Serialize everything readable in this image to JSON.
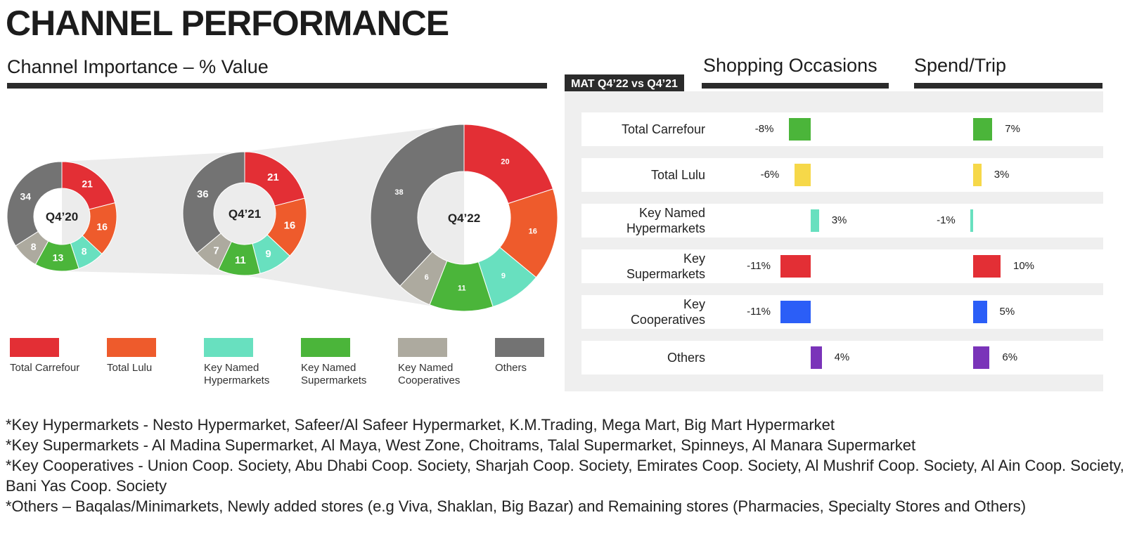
{
  "page": {
    "title": "CHANNEL PERFORMANCE",
    "channel_importance_title": "Channel Importance – % Value",
    "period_badge": "MAT Q4’22 vs Q4’21",
    "shopping_occasions_title": "Shopping Occasions",
    "spend_trip_title": "Spend/Trip"
  },
  "colors": {
    "Total Carrefour": "#e32f35",
    "Total Lulu": "#ee5b2c",
    "Key Named Hypermarkets": "#68e0bf",
    "Key Named Supermarkets": "#4bb53a",
    "Key Named Cooperatives": "#adaa9f",
    "Others": "#737373",
    "Key Supermarkets": "#e32f35",
    "Key Cooperatives": "#2b5ef7",
    "Others_bar": "#7a34b9",
    "Total Lulu_bar": "#f6d849"
  },
  "chart_data": [
    {
      "type": "pie",
      "title": "Channel Importance – % Value",
      "categories": [
        "Total Carrefour",
        "Total Lulu",
        "Key Named Hypermarkets",
        "Key Named Supermarkets",
        "Key Named Cooperatives",
        "Others"
      ],
      "donuts": [
        {
          "label": "Q4’20",
          "values": [
            21,
            16,
            8,
            13,
            8,
            34
          ]
        },
        {
          "label": "Q4’21",
          "values": [
            21,
            16,
            9,
            11,
            7,
            36
          ]
        },
        {
          "label": "Q4’22",
          "values": [
            20,
            16,
            9,
            11,
            6,
            38
          ]
        }
      ],
      "legend": [
        {
          "name": "Total Carrefour",
          "display": "Total Carrefour"
        },
        {
          "name": "Total Lulu",
          "display": "Total Lulu"
        },
        {
          "name": "Key Named Hypermarkets",
          "display": "Key Named Hypermarkets"
        },
        {
          "name": "Key Named Supermarkets",
          "display": "Key Named Supermarkets"
        },
        {
          "name": "Key Named Cooperatives",
          "display": "Key Named Cooperatives"
        },
        {
          "name": "Others",
          "display": "Others"
        }
      ],
      "legend_position": "bottom"
    },
    {
      "type": "bar",
      "title": "MAT Q4’22 vs Q4’21",
      "categories": [
        "Total Carrefour",
        "Total Lulu",
        "Key Named Hypermarkets",
        "Key Supermarkets",
        "Key Cooperatives",
        "Others"
      ],
      "series": [
        {
          "name": "Shopping Occasions",
          "values": [
            -8,
            -6,
            3,
            -11,
            -11,
            4
          ],
          "labels": [
            "-8%",
            "-6%",
            "3%",
            "-11%",
            "-11%",
            "4%"
          ]
        },
        {
          "name": "Spend/Trip",
          "values": [
            7,
            3,
            -1,
            10,
            5,
            6
          ],
          "labels": [
            "7%",
            "3%",
            "-1%",
            "10%",
            "5%",
            "6%"
          ]
        }
      ],
      "bar_colors": [
        "#4bb53a",
        "#f6d849",
        "#68e0bf",
        "#e32f35",
        "#2b5ef7",
        "#7a34b9"
      ]
    }
  ],
  "row_labels": [
    [
      "Total Carrefour"
    ],
    [
      "Total Lulu"
    ],
    [
      "Key Named",
      "Hypermarkets"
    ],
    [
      "Key",
      "Supermarkets"
    ],
    [
      "Key",
      "Cooperatives"
    ],
    [
      "Others"
    ]
  ],
  "footnotes": [
    "*Key Hypermarkets - Nesto Hypermarket, Safeer/Al Safeer Hypermarket, K.M.Trading, Mega Mart, Big Mart Hypermarket",
    "*Key Supermarkets - Al Madina Supermarket, Al Maya, West Zone, Choitrams, Talal Supermarket, Spinneys, Al Manara Supermarket",
    "*Key Cooperatives - Union Coop. Society, Abu Dhabi Coop. Society, Sharjah Coop. Society, Emirates Coop. Society, Al Mushrif Coop. Society, Al Ain Coop. Society, Bani Yas Coop. Society",
    "*Others – Baqalas/Minimarkets, Newly added stores (e.g Viva, Shaklan, Big Bazar) and Remaining stores (Pharmacies, Specialty Stores and Others)"
  ]
}
